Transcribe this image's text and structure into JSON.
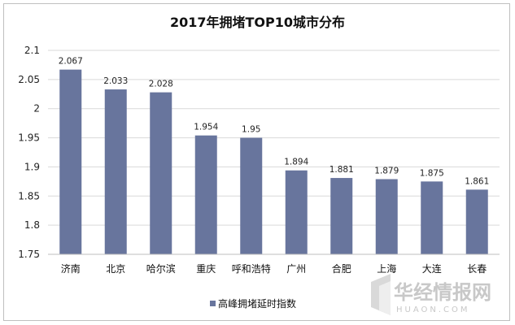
{
  "chart_data": {
    "type": "bar",
    "title": "2017年拥堵TOP10城市分布",
    "categories": [
      "济南",
      "北京",
      "哈尔滨",
      "重庆",
      "呼和浩特",
      "广州",
      "合肥",
      "上海",
      "大连",
      "长春"
    ],
    "series": [
      {
        "name": "高峰拥堵延时指数",
        "values": [
          2.067,
          2.033,
          2.028,
          1.954,
          1.95,
          1.894,
          1.881,
          1.879,
          1.875,
          1.861
        ],
        "labels": [
          "2.067",
          "2.033",
          "2.028",
          "1.954",
          "1.95",
          "1.894",
          "1.881",
          "1.879",
          "1.875",
          "1.861"
        ]
      }
    ],
    "ylim": [
      1.75,
      2.1
    ],
    "yticks": [
      "1.75",
      "1.8",
      "1.85",
      "1.9",
      "1.95",
      "2",
      "2.05",
      "2.1"
    ],
    "grid": true,
    "legend": "bottom",
    "bar_color": "#68759d"
  },
  "watermark": {
    "cn": "华经情报网",
    "en": "HUAON.COM"
  }
}
